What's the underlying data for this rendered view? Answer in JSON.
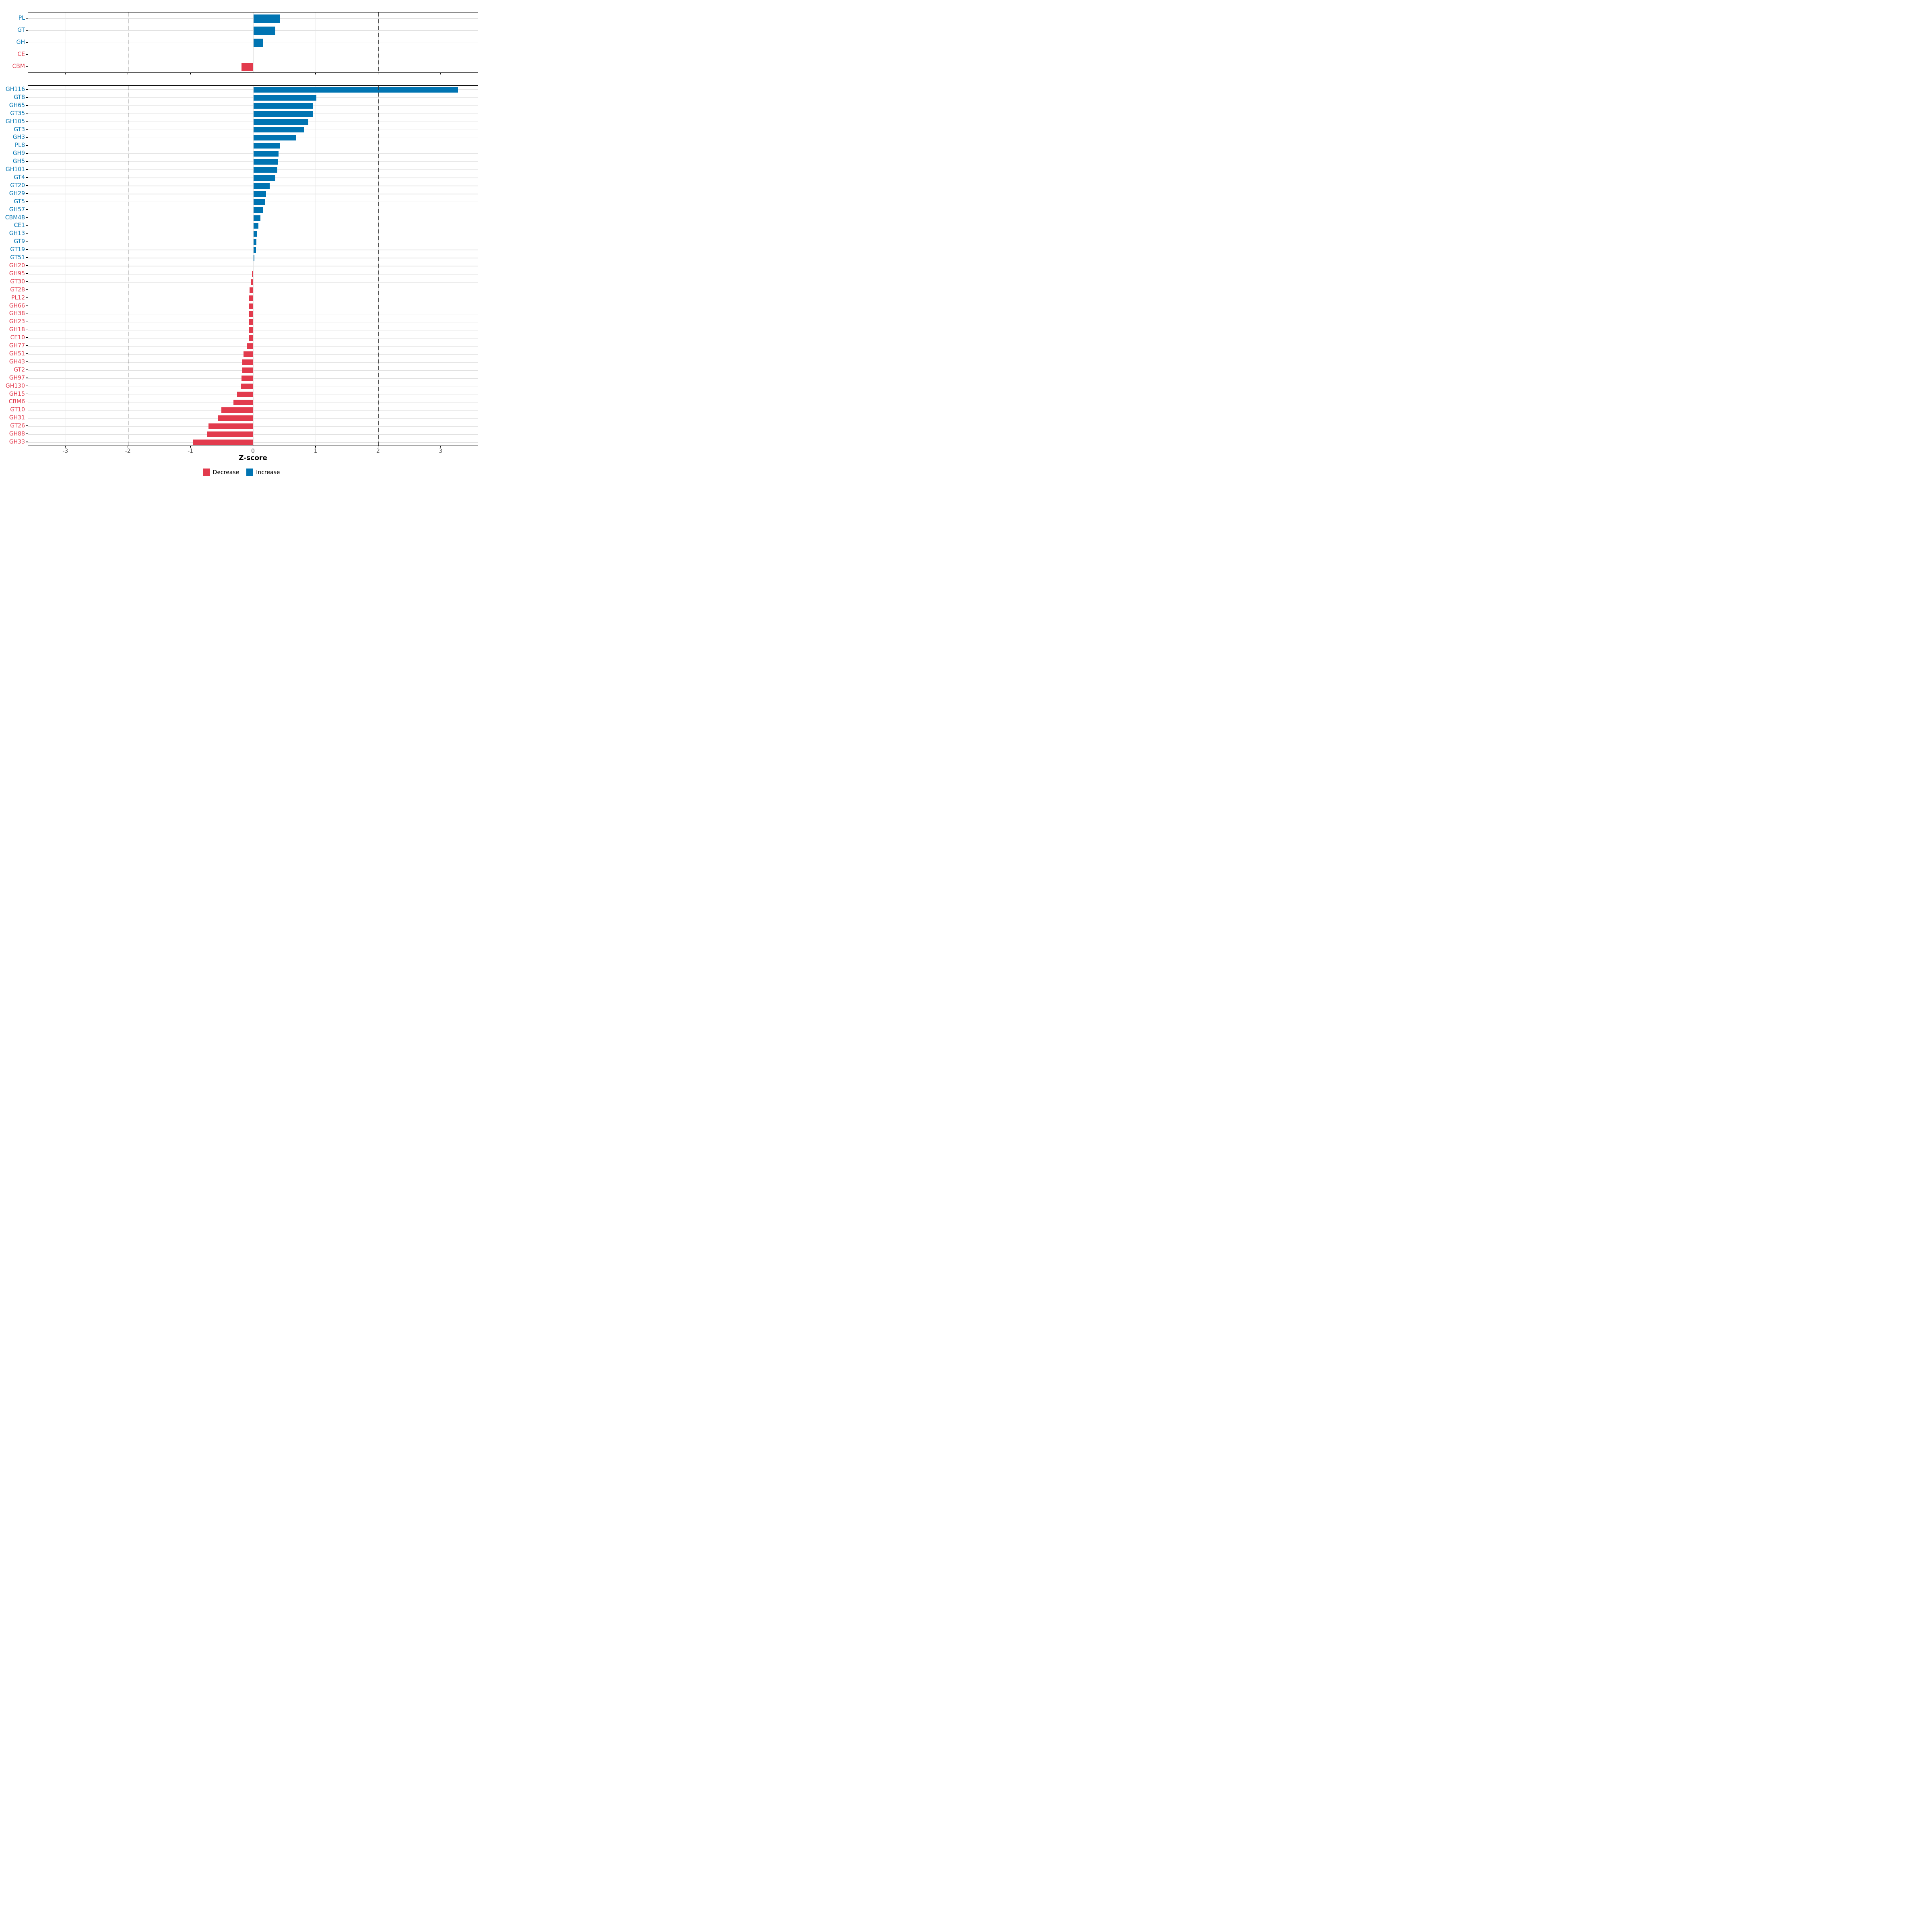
{
  "chart_data": {
    "type": "bar",
    "orientation": "horizontal",
    "xlabel": "Z-score",
    "xlim": [
      -3.6,
      3.6
    ],
    "x_ticks": [
      -3,
      -2,
      -1,
      0,
      1,
      2,
      3
    ],
    "x_tick_labels": [
      "-3",
      "-2",
      "-1",
      "0",
      "1",
      "2",
      "3"
    ],
    "dashed_guides": [
      -2,
      2
    ],
    "grid": "on",
    "legend_position": "bottom",
    "panels": [
      {
        "id": "summary",
        "rows": [
          {
            "label": "PL",
            "value": 0.43,
            "group": "Increase"
          },
          {
            "label": "GT",
            "value": 0.35,
            "group": "Increase"
          },
          {
            "label": "GH",
            "value": 0.15,
            "group": "Increase"
          },
          {
            "label": "CE",
            "value": 0.0,
            "group": "Decrease"
          },
          {
            "label": "CBM",
            "value": -0.19,
            "group": "Decrease"
          }
        ]
      },
      {
        "id": "families",
        "rows": [
          {
            "label": "GH116",
            "value": 3.27,
            "group": "Increase"
          },
          {
            "label": "GT8",
            "value": 1.01,
            "group": "Increase"
          },
          {
            "label": "GH65",
            "value": 0.95,
            "group": "Increase"
          },
          {
            "label": "GT35",
            "value": 0.95,
            "group": "Increase"
          },
          {
            "label": "GH105",
            "value": 0.88,
            "group": "Increase"
          },
          {
            "label": "GT3",
            "value": 0.81,
            "group": "Increase"
          },
          {
            "label": "GH3",
            "value": 0.68,
            "group": "Increase"
          },
          {
            "label": "PL8",
            "value": 0.43,
            "group": "Increase"
          },
          {
            "label": "GH9",
            "value": 0.4,
            "group": "Increase"
          },
          {
            "label": "GH5",
            "value": 0.39,
            "group": "Increase"
          },
          {
            "label": "GH101",
            "value": 0.38,
            "group": "Increase"
          },
          {
            "label": "GT4",
            "value": 0.35,
            "group": "Increase"
          },
          {
            "label": "GT20",
            "value": 0.26,
            "group": "Increase"
          },
          {
            "label": "GH29",
            "value": 0.2,
            "group": "Increase"
          },
          {
            "label": "GT5",
            "value": 0.19,
            "group": "Increase"
          },
          {
            "label": "GH57",
            "value": 0.15,
            "group": "Increase"
          },
          {
            "label": "CBM48",
            "value": 0.11,
            "group": "Increase"
          },
          {
            "label": "CE1",
            "value": 0.08,
            "group": "Increase"
          },
          {
            "label": "GH13",
            "value": 0.06,
            "group": "Increase"
          },
          {
            "label": "GT9",
            "value": 0.05,
            "group": "Increase"
          },
          {
            "label": "GT19",
            "value": 0.045,
            "group": "Increase"
          },
          {
            "label": "GT51",
            "value": 0.015,
            "group": "Increase"
          },
          {
            "label": "GH20",
            "value": -0.012,
            "group": "Decrease"
          },
          {
            "label": "GH95",
            "value": -0.025,
            "group": "Decrease"
          },
          {
            "label": "GT30",
            "value": -0.045,
            "group": "Decrease"
          },
          {
            "label": "GT28",
            "value": -0.06,
            "group": "Decrease"
          },
          {
            "label": "PL12",
            "value": -0.071,
            "group": "Decrease"
          },
          {
            "label": "GH66",
            "value": -0.072,
            "group": "Decrease"
          },
          {
            "label": "GH38",
            "value": -0.072,
            "group": "Decrease"
          },
          {
            "label": "GH23",
            "value": -0.073,
            "group": "Decrease"
          },
          {
            "label": "GH18",
            "value": -0.073,
            "group": "Decrease"
          },
          {
            "label": "CE10",
            "value": -0.074,
            "group": "Decrease"
          },
          {
            "label": "GH77",
            "value": -0.1,
            "group": "Decrease"
          },
          {
            "label": "GH51",
            "value": -0.16,
            "group": "Decrease"
          },
          {
            "label": "GH43",
            "value": -0.18,
            "group": "Decrease"
          },
          {
            "label": "GT2",
            "value": -0.18,
            "group": "Decrease"
          },
          {
            "label": "GH97",
            "value": -0.19,
            "group": "Decrease"
          },
          {
            "label": "GH130",
            "value": -0.195,
            "group": "Decrease"
          },
          {
            "label": "GH15",
            "value": -0.26,
            "group": "Decrease"
          },
          {
            "label": "CBM6",
            "value": -0.32,
            "group": "Decrease"
          },
          {
            "label": "GT10",
            "value": -0.51,
            "group": "Decrease"
          },
          {
            "label": "GH31",
            "value": -0.57,
            "group": "Decrease"
          },
          {
            "label": "GT26",
            "value": -0.72,
            "group": "Decrease"
          },
          {
            "label": "GH88",
            "value": -0.74,
            "group": "Decrease"
          },
          {
            "label": "GH33",
            "value": -0.96,
            "group": "Decrease"
          }
        ]
      }
    ],
    "legend": [
      {
        "label": "Decrease",
        "color": "#E23B4D"
      },
      {
        "label": "Increase",
        "color": "#0074B2"
      }
    ]
  },
  "colors": {
    "increase": "#0074B2",
    "decrease": "#E23B4D",
    "gridline": "#e2e2e2",
    "dashed_guide": "#3a3a3a",
    "axis_text": "#4d4d4d",
    "axis_line": "#000000"
  }
}
